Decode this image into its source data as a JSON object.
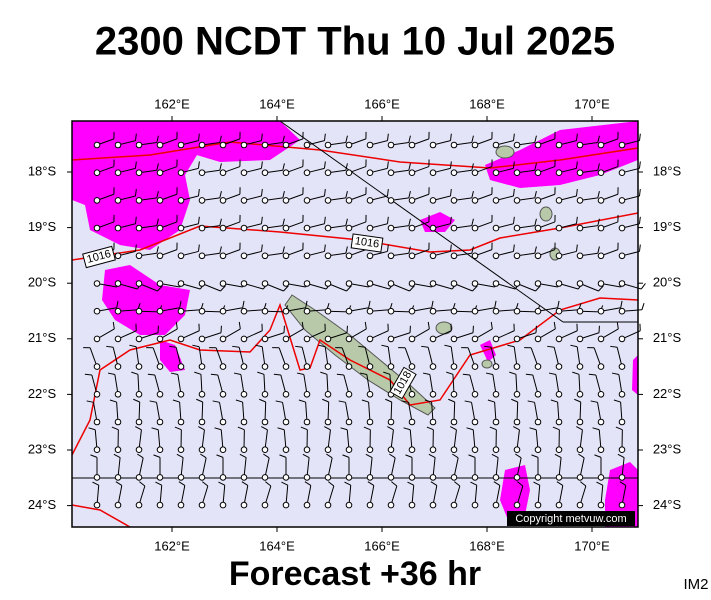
{
  "header": {
    "title": "2300 NCDT Thu 10 Jul 2025"
  },
  "map": {
    "longitude_labels": [
      "162°E",
      "164°E",
      "166°E",
      "168°E",
      "170°E"
    ],
    "latitude_labels": [
      "18°S",
      "19°S",
      "20°S",
      "21°S",
      "22°S",
      "23°S",
      "24°S"
    ],
    "isobar_labels": [
      "1016",
      "1016",
      "1018"
    ],
    "copyright": "Copyright metvuw.com"
  },
  "footer": {
    "caption": "Forecast +36 hr",
    "image_id": "IM2"
  }
}
